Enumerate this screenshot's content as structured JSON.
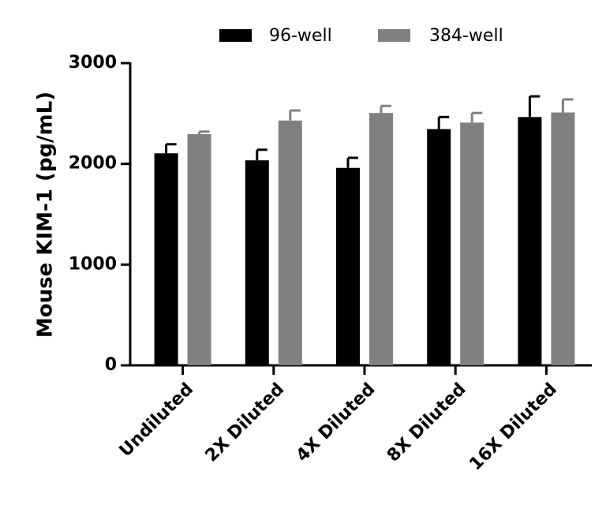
{
  "chart_data": {
    "type": "bar",
    "title": "",
    "xlabel": "",
    "ylabel": "Mouse KIM-1 (pg/mL)",
    "ylim": [
      0,
      3000
    ],
    "yticks": [
      "0",
      "1000",
      "2000",
      "3000"
    ],
    "categories": [
      "Undiluted",
      "2X Diluted",
      "4X Diluted",
      "8X Diluted",
      "16X Diluted"
    ],
    "series": [
      {
        "name": "96-well",
        "color": "#000000",
        "values": [
          2105,
          2035,
          1960,
          2345,
          2465
        ],
        "errors": [
          90,
          105,
          100,
          120,
          205
        ]
      },
      {
        "name": "384-well",
        "color": "#808080",
        "values": [
          2295,
          2430,
          2505,
          2410,
          2510
        ],
        "errors": [
          25,
          100,
          70,
          95,
          130
        ]
      }
    ],
    "legend": {
      "position": "top"
    },
    "grid": false
  }
}
